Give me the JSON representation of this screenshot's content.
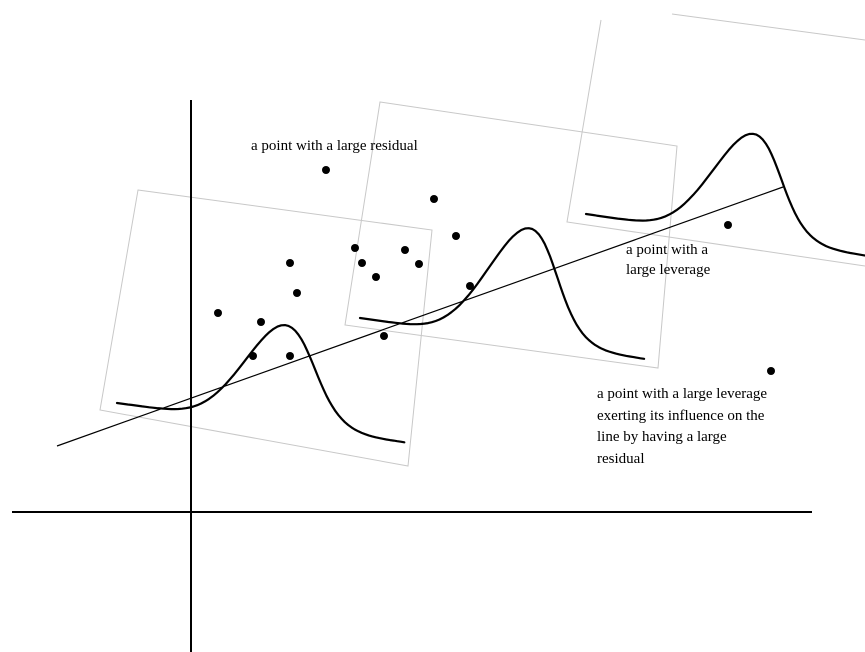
{
  "annotations": {
    "large_residual": "a point with a large residual",
    "large_leverage": [
      "a point with a",
      "large leverage"
    ],
    "influential": [
      "a point with a large leverage",
      "exerting its influence on the",
      "line by having a large",
      "residual"
    ]
  }
}
